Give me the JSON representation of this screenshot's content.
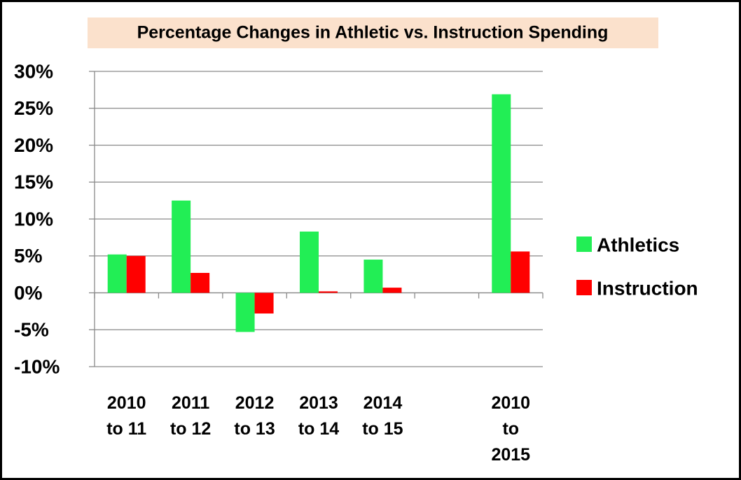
{
  "chart_data": {
    "type": "bar",
    "title": "Percentage Changes in Athletic vs. Instruction Spending",
    "categories": [
      "2010 to 11",
      "2011 to 12",
      "2012 to 13",
      "2013 to 14",
      "2014 to 15",
      null,
      "2010 to 2015"
    ],
    "series": [
      {
        "name": "Athletics",
        "color": "#22ee55",
        "values": [
          5.2,
          12.5,
          -5.3,
          8.3,
          4.5,
          null,
          26.9
        ]
      },
      {
        "name": "Instruction",
        "color": "#ff0000",
        "values": [
          5.0,
          2.7,
          -2.8,
          0.2,
          0.7,
          null,
          5.6
        ]
      }
    ],
    "ylim": [
      -10,
      30
    ],
    "yticks": [
      {
        "value": -10,
        "label": "-10%"
      },
      {
        "value": -5,
        "label": "-5%"
      },
      {
        "value": 0,
        "label": "0%"
      },
      {
        "value": 5,
        "label": "5%"
      },
      {
        "value": 10,
        "label": "10%"
      },
      {
        "value": 15,
        "label": "15%"
      },
      {
        "value": 20,
        "label": "20%"
      },
      {
        "value": 25,
        "label": "25%"
      },
      {
        "value": 30,
        "label": "30%"
      }
    ],
    "grid": true,
    "legend": "right"
  }
}
